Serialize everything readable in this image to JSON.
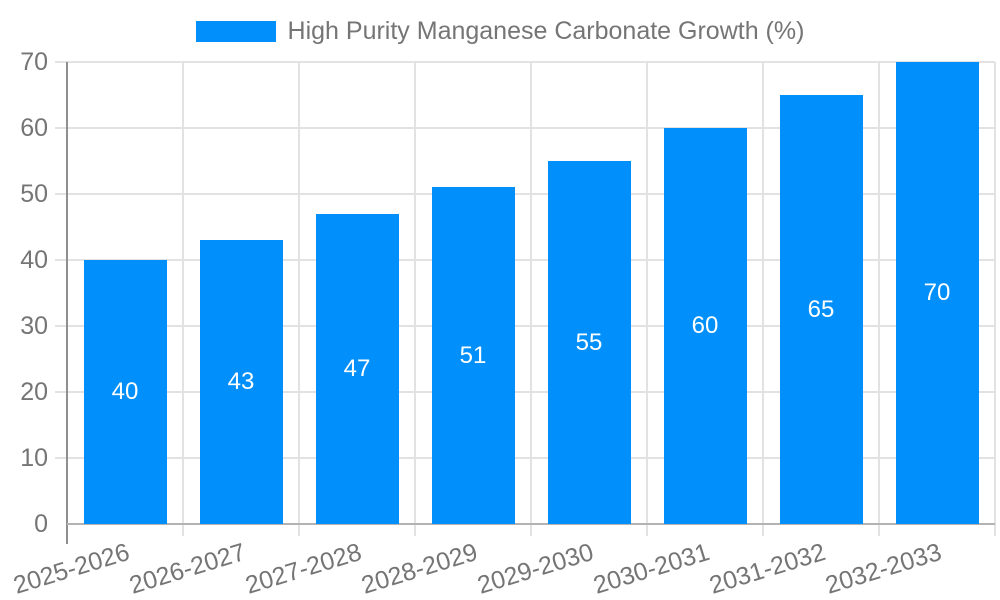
{
  "legend": {
    "item_label": "High Purity Manganese Carbonate Growth (%)"
  },
  "chart_data": {
    "type": "bar",
    "title": "High Purity Manganese Carbonate Growth (%)",
    "categories": [
      "2025-2026",
      "2026-2027",
      "2027-2028",
      "2028-2029",
      "2029-2030",
      "2030-2031",
      "2031-2032",
      "2032-2033"
    ],
    "values": [
      40,
      43,
      47,
      51,
      55,
      60,
      65,
      70
    ],
    "xlabel": "",
    "ylabel": "",
    "ylim": [
      0,
      70
    ],
    "y_ticks": [
      0,
      10,
      20,
      30,
      40,
      50,
      60,
      70
    ],
    "grid": true,
    "legend_position": "top",
    "data_labels": "inside-center",
    "colors": {
      "bar": "#008FFB",
      "bar_value_label": "#ffffff",
      "axis_text": "#757575",
      "gridline": "#e2e2e2",
      "y_axis_line": "#8f8f8f",
      "x_axis_line": "#b3b3b3",
      "background": "#ffffff"
    }
  }
}
